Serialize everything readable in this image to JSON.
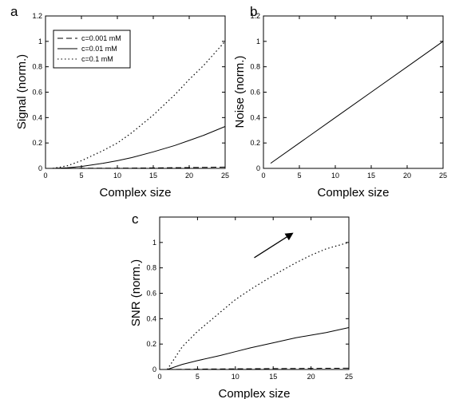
{
  "chart_data": [
    {
      "type": "line",
      "panel_label": "a",
      "xlabel": "Complex size",
      "ylabel": "Signal (norm.)",
      "xlim": [
        0,
        25
      ],
      "ylim": [
        0,
        1.2
      ],
      "x_ticks": [
        "0",
        "5",
        "10",
        "15",
        "20",
        "25"
      ],
      "y_ticks": [
        "0",
        "0.2",
        "0.4",
        "0.6",
        "0.8",
        "1",
        "1.2"
      ],
      "legend_position": "top-left",
      "series": [
        {
          "name": "c=0.001 mM",
          "style": "dashed",
          "x": [
            1,
            5,
            10,
            15,
            20,
            25
          ],
          "y": [
            0.0,
            0.001,
            0.002,
            0.004,
            0.006,
            0.01
          ]
        },
        {
          "name": "c=0.01 mM",
          "style": "solid",
          "x": [
            1,
            3,
            5,
            8,
            10,
            12,
            15,
            18,
            20,
            22,
            25
          ],
          "y": [
            0.0,
            0.005,
            0.015,
            0.04,
            0.06,
            0.085,
            0.13,
            0.18,
            0.22,
            0.26,
            0.33
          ]
        },
        {
          "name": "c=0.1 mM",
          "style": "dotted",
          "x": [
            1,
            3,
            5,
            8,
            10,
            12,
            15,
            18,
            20,
            22,
            25
          ],
          "y": [
            0.0,
            0.02,
            0.06,
            0.14,
            0.2,
            0.28,
            0.42,
            0.58,
            0.7,
            0.81,
            1.0
          ]
        }
      ]
    },
    {
      "type": "line",
      "panel_label": "b",
      "xlabel": "Complex size",
      "ylabel": "Noise (norm.)",
      "xlim": [
        0,
        25
      ],
      "ylim": [
        0,
        1.2
      ],
      "x_ticks": [
        "0",
        "5",
        "10",
        "15",
        "20",
        "25"
      ],
      "y_ticks": [
        "0",
        "0.2",
        "0.4",
        "0.6",
        "0.8",
        "1",
        "1.2"
      ],
      "series": [
        {
          "style": "solid",
          "x": [
            1,
            5,
            10,
            15,
            20,
            25
          ],
          "y": [
            0.04,
            0.2,
            0.4,
            0.6,
            0.8,
            1.0
          ]
        }
      ]
    },
    {
      "type": "line",
      "panel_label": "c",
      "xlabel": "Complex size",
      "ylabel": "SNR (norm.)",
      "xlim": [
        0,
        25
      ],
      "ylim": [
        0,
        1.2
      ],
      "x_ticks": [
        "0",
        "5",
        "10",
        "15",
        "20",
        "25"
      ],
      "y_ticks": [
        "0",
        "0.2",
        "0.4",
        "0.6",
        "0.8",
        "1"
      ],
      "arrow": {
        "x1": 12.5,
        "y1": 0.88,
        "x2": 17.5,
        "y2": 1.07
      },
      "series": [
        {
          "style": "dashed",
          "x": [
            1,
            5,
            10,
            15,
            20,
            25
          ],
          "y": [
            0.0,
            0.003,
            0.005,
            0.007,
            0.009,
            0.01
          ]
        },
        {
          "style": "solid",
          "x": [
            1,
            3,
            5,
            8,
            10,
            12,
            15,
            18,
            20,
            22,
            25
          ],
          "y": [
            0.0,
            0.04,
            0.07,
            0.11,
            0.14,
            0.17,
            0.21,
            0.25,
            0.27,
            0.29,
            0.33
          ]
        },
        {
          "style": "dotted",
          "x": [
            1,
            3,
            5,
            8,
            10,
            12,
            15,
            18,
            20,
            22,
            25
          ],
          "y": [
            0.0,
            0.18,
            0.3,
            0.45,
            0.55,
            0.63,
            0.74,
            0.84,
            0.9,
            0.95,
            1.0
          ]
        }
      ]
    }
  ]
}
